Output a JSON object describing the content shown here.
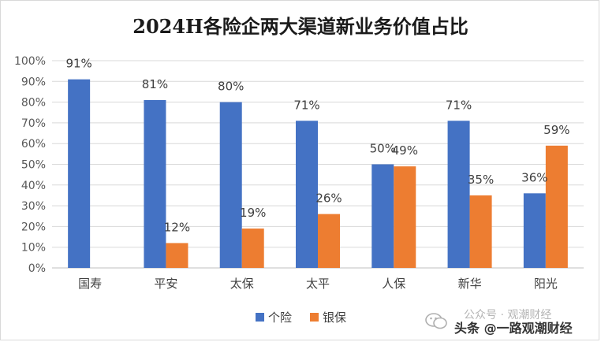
{
  "chart_data": {
    "type": "bar",
    "title": "2024H各险企两大渠道新业务价值占比",
    "categories": [
      "国寿",
      "平安",
      "太保",
      "太平",
      "人保",
      "新华",
      "阳光"
    ],
    "series": [
      {
        "name": "个险",
        "values": [
          91,
          81,
          80,
          71,
          50,
          71,
          36
        ],
        "labels": [
          "91%",
          "81%",
          "80%",
          "71%",
          "50%",
          "71%",
          "36%"
        ],
        "color": "#4472C4"
      },
      {
        "name": "银保",
        "values": [
          null,
          12,
          19,
          26,
          49,
          35,
          59
        ],
        "labels": [
          "",
          "12%",
          "19%",
          "26%",
          "49%",
          "35%",
          "59%"
        ],
        "color": "#ED7D31"
      }
    ],
    "ylim": [
      0,
      100
    ],
    "yticks": [
      "0%",
      "10%",
      "20%",
      "30%",
      "40%",
      "50%",
      "60%",
      "70%",
      "80%",
      "90%",
      "100%"
    ],
    "grid": true,
    "legend": "bottom"
  },
  "watermark": {
    "top": "公众号 · 观潮财经",
    "bottom": "头条 @一路观潮财经",
    "icon": "wechat-icon"
  }
}
